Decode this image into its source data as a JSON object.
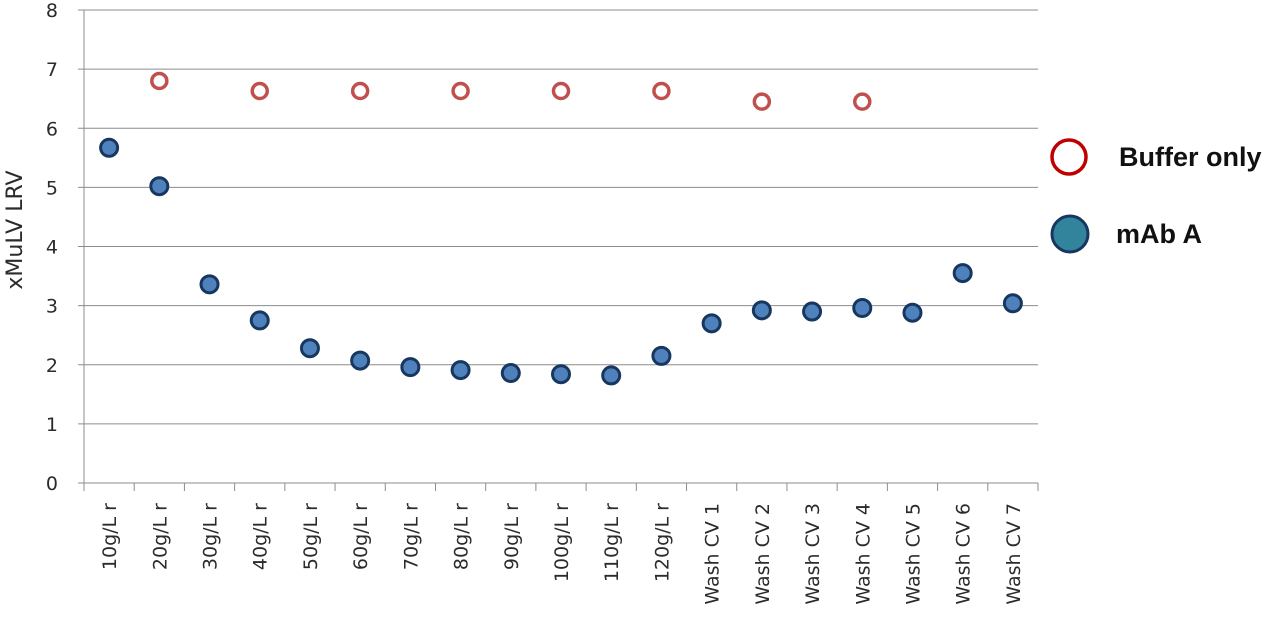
{
  "chart_data": {
    "type": "scatter",
    "title": "",
    "xlabel": "",
    "ylabel": "xMuLV LRV",
    "ylim": [
      0,
      8
    ],
    "yticks": [
      0,
      1,
      2,
      3,
      4,
      5,
      6,
      7,
      8
    ],
    "grid": true,
    "legend_position": "right",
    "categories": [
      "10g/L r",
      "20g/L r",
      "30g/L r",
      "40g/L r",
      "50g/L r",
      "60g/L r",
      "70g/L r",
      "80g/L r",
      "90g/L r",
      "100g/L r",
      "110g/L r",
      "120g/L r",
      "Wash CV 1",
      "Wash CV 2",
      "Wash CV 3",
      "Wash CV 4",
      "Wash CV 5",
      "Wash CV 6",
      "Wash CV 7"
    ],
    "series": [
      {
        "name": "Buffer only",
        "marker": "open-circle",
        "color": "#c0504d",
        "legend_color": "#c00000",
        "values": [
          null,
          6.8,
          null,
          6.63,
          null,
          6.63,
          null,
          6.63,
          null,
          6.63,
          null,
          6.63,
          null,
          6.45,
          null,
          6.45,
          null,
          null,
          null
        ]
      },
      {
        "name": "mAb A",
        "marker": "filled-circle",
        "color": "#4f81bd",
        "legend_color": "#31849b",
        "edge_color": "#17375e",
        "values": [
          5.67,
          5.02,
          3.36,
          2.75,
          2.28,
          2.07,
          1.96,
          1.91,
          1.86,
          1.84,
          1.82,
          2.15,
          2.7,
          2.92,
          2.9,
          2.96,
          2.88,
          3.55,
          3.04
        ]
      }
    ]
  }
}
